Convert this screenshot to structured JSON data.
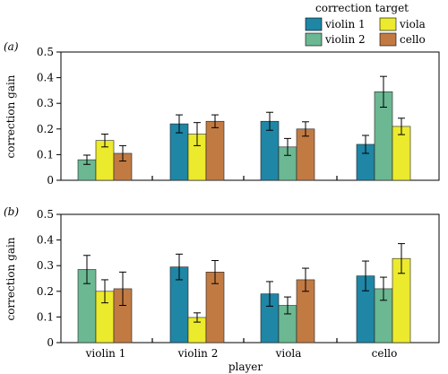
{
  "chart_data": {
    "type": "bar",
    "legend": {
      "title": "correction target",
      "placement": "top-right",
      "entries": [
        {
          "name": "violin 1",
          "color": "#1f86a6"
        },
        {
          "name": "viola",
          "color": "#ecea2c"
        },
        {
          "name": "violin 2",
          "color": "#6bb892"
        },
        {
          "name": "cello",
          "color": "#c27a43"
        }
      ]
    },
    "categories": [
      "violin 1",
      "violin 2",
      "viola",
      "cello"
    ],
    "xlabel": "player",
    "ylabel": "correction gain",
    "ylim": [
      0,
      0.5
    ],
    "yticks": [
      "0",
      "0.1",
      "0.2",
      "0.3",
      "0.4",
      "0.5"
    ],
    "grid": false,
    "panels": [
      {
        "label": "(a)",
        "series": [
          {
            "name": "violin 1",
            "values": [
              null,
              0.22,
              0.23,
              0.14
            ],
            "errors": [
              null,
              0.035,
              0.035,
              0.035
            ]
          },
          {
            "name": "violin 2",
            "values": [
              0.08,
              null,
              0.13,
              0.345
            ],
            "errors": [
              0.018,
              null,
              0.033,
              0.06
            ]
          },
          {
            "name": "viola",
            "values": [
              0.155,
              0.18,
              null,
              0.21
            ],
            "errors": [
              0.025,
              0.045,
              null,
              0.032
            ]
          },
          {
            "name": "cello",
            "values": [
              0.105,
              0.23,
              0.2,
              null
            ],
            "errors": [
              0.03,
              0.025,
              0.028,
              null
            ]
          }
        ]
      },
      {
        "label": "(b)",
        "series": [
          {
            "name": "violin 1",
            "values": [
              null,
              0.295,
              0.19,
              0.26
            ],
            "errors": [
              null,
              0.05,
              0.048,
              0.058
            ]
          },
          {
            "name": "violin 2",
            "values": [
              0.285,
              null,
              0.145,
              0.21
            ],
            "errors": [
              0.055,
              null,
              0.033,
              0.045
            ]
          },
          {
            "name": "viola",
            "values": [
              0.2,
              0.098,
              null,
              0.328
            ],
            "errors": [
              0.045,
              0.018,
              null,
              0.058
            ]
          },
          {
            "name": "cello",
            "values": [
              0.21,
              0.275,
              0.245,
              null
            ],
            "errors": [
              0.065,
              0.045,
              0.045,
              null
            ]
          }
        ]
      }
    ]
  }
}
